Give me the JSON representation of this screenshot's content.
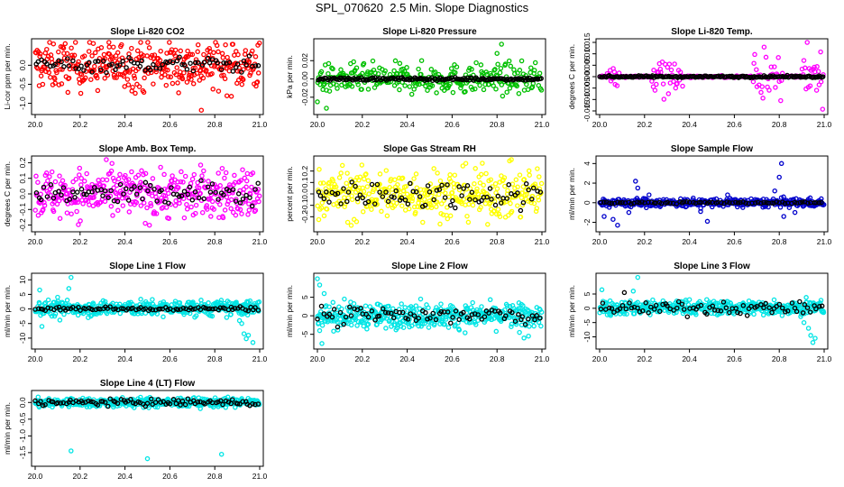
{
  "figure_title": "SPL_070620  2.5 Min. Slope Diagnostics",
  "chart_data": [
    {
      "type": "scatter",
      "title": "Slope Li-820 CO2",
      "ylabel": "Li-cor ppm per min.",
      "xlabel": "",
      "xlim": [
        20.0,
        21.0
      ],
      "ylim": [
        -1.2,
        0.6
      ],
      "xticks": [
        "20.0",
        "20.2",
        "20.4",
        "20.6",
        "20.8",
        "21.0"
      ],
      "yticks": [
        {
          "v": -1.0,
          "t": "-1.0"
        },
        {
          "v": -0.5,
          "t": "-0.5"
        },
        {
          "v": 0.0,
          "t": "0.0"
        }
      ],
      "series": [
        {
          "color": "#ff0000",
          "kind": "noise",
          "spread": 0.32,
          "center": 0.0,
          "n": 360,
          "spikes": [
            [
              20.74,
              -1.18
            ],
            [
              20.81,
              0.52
            ],
            [
              20.33,
              0.48
            ]
          ]
        },
        {
          "color": "#000000",
          "kind": "noise",
          "spread": 0.1,
          "center": 0.02,
          "n": 80
        }
      ]
    },
    {
      "type": "scatter",
      "title": "Slope Li-820 Pressure",
      "ylabel": "kPa per min.",
      "xlabel": "",
      "xlim": [
        20.0,
        21.0
      ],
      "ylim": [
        -0.035,
        0.04
      ],
      "xticks": [
        "20.0",
        "20.2",
        "20.4",
        "20.6",
        "20.8",
        "21.0"
      ],
      "yticks": [
        {
          "v": -0.02,
          "t": "-0.02"
        },
        {
          "v": 0.0,
          "t": "0.00"
        },
        {
          "v": 0.02,
          "t": "0.02"
        }
      ],
      "series": [
        {
          "color": "#00c000",
          "kind": "noise",
          "spread": 0.008,
          "center": 0.0,
          "n": 300,
          "spikes": [
            [
              20.82,
              0.038
            ],
            [
              20.8,
              0.028
            ],
            [
              20.04,
              -0.032
            ],
            [
              20.0,
              -0.025
            ]
          ]
        },
        {
          "color": "#000000",
          "kind": "flat",
          "center": 0.0,
          "spread": 0.0008,
          "n": 160
        }
      ]
    },
    {
      "type": "scatter",
      "title": "Slope Li-820 Temp.",
      "ylabel": "degrees C per min.",
      "xlabel": "",
      "xlim": [
        20.0,
        21.0
      ],
      "ylim": [
        -0.015,
        0.015
      ],
      "xticks": [
        "20.0",
        "20.2",
        "20.4",
        "20.6",
        "20.8",
        "21.0"
      ],
      "yticks": [
        {
          "v": -0.015,
          "t": "-0.015"
        },
        {
          "v": -0.01,
          "t": "-0.010"
        },
        {
          "v": -0.005,
          "t": "-0.005"
        },
        {
          "v": 0.0,
          "t": "0.000"
        },
        {
          "v": 0.005,
          "t": "0.005"
        },
        {
          "v": 0.01,
          "t": "0.010"
        },
        {
          "v": 0.015,
          "t": "0.015"
        }
      ],
      "series": [
        {
          "color": "#ff00ff",
          "kind": "bursts",
          "center": 0.0,
          "n": 220,
          "bursts": [
            [
              20.3,
              0.07,
              0.006
            ],
            [
              20.75,
              0.07,
              0.006
            ],
            [
              20.95,
              0.05,
              0.006
            ],
            [
              20.06,
              0.03,
              0.003
            ]
          ]
        },
        {
          "color": "#000000",
          "kind": "flat",
          "center": 0.0,
          "spread": 0.0002,
          "n": 170
        }
      ]
    },
    {
      "type": "scatter",
      "title": "Slope Amb. Box Temp.",
      "ylabel": "degrees C per min.",
      "xlabel": "",
      "xlim": [
        20.0,
        21.0
      ],
      "ylim": [
        -0.22,
        0.22
      ],
      "xticks": [
        "20.0",
        "20.2",
        "20.4",
        "20.6",
        "20.8",
        "21.0"
      ],
      "yticks": [
        {
          "v": -0.2,
          "t": "-0.2"
        },
        {
          "v": -0.1,
          "t": "-0.1"
        },
        {
          "v": 0.0,
          "t": "0.0"
        },
        {
          "v": 0.1,
          "t": "0.1"
        },
        {
          "v": 0.2,
          "t": "0.2"
        }
      ],
      "series": [
        {
          "color": "#ff00ff",
          "kind": "noise",
          "spread": 0.08,
          "center": 0.0,
          "n": 380
        },
        {
          "color": "#000000",
          "kind": "noise",
          "spread": 0.04,
          "center": 0.0,
          "n": 80
        }
      ]
    },
    {
      "type": "scatter",
      "title": "Slope Gas Stream RH",
      "ylabel": "percent per min.",
      "xlabel": "",
      "xlim": [
        20.0,
        21.0
      ],
      "ylim": [
        -0.3,
        0.3
      ],
      "xticks": [
        "20.0",
        "20.2",
        "20.4",
        "20.6",
        "20.8",
        "21.0"
      ],
      "yticks": [
        {
          "v": -0.2,
          "t": "-0.2"
        },
        {
          "v": -0.1,
          "t": "-0.1"
        },
        {
          "v": 0.0,
          "t": "0.0"
        },
        {
          "v": 0.1,
          "t": "0.1"
        },
        {
          "v": 0.2,
          "t": "0.2"
        }
      ],
      "series": [
        {
          "color": "#ffff00",
          "kind": "noise",
          "spread": 0.11,
          "center": 0.0,
          "n": 380
        },
        {
          "color": "#000000",
          "kind": "noise",
          "spread": 0.06,
          "center": 0.0,
          "n": 80
        }
      ]
    },
    {
      "type": "scatter",
      "title": "Slope Sample Flow",
      "ylabel": "ml/min per min.",
      "xlabel": "",
      "xlim": [
        20.0,
        21.0
      ],
      "ylim": [
        -2.6,
        4.4
      ],
      "xticks": [
        "20.0",
        "20.2",
        "20.4",
        "20.6",
        "20.8",
        "21.0"
      ],
      "yticks": [
        {
          "v": -2,
          "t": "-2"
        },
        {
          "v": 0,
          "t": "0"
        },
        {
          "v": 2,
          "t": "2"
        },
        {
          "v": 4,
          "t": "4"
        }
      ],
      "series": [
        {
          "color": "#0000cc",
          "kind": "noise",
          "spread": 0.22,
          "center": 0.0,
          "n": 380,
          "spikes": [
            [
              20.81,
              4.0
            ],
            [
              20.8,
              2.6
            ],
            [
              20.78,
              1.2
            ],
            [
              20.82,
              -1.4
            ],
            [
              20.16,
              2.2
            ],
            [
              20.13,
              -1.0
            ],
            [
              20.08,
              -2.3
            ],
            [
              20.06,
              -1.7
            ],
            [
              20.02,
              -1.4
            ],
            [
              20.48,
              -1.9
            ],
            [
              20.45,
              -0.9
            ],
            [
              20.17,
              1.5
            ],
            [
              20.22,
              0.8
            ],
            [
              20.57,
              0.8
            ],
            [
              20.87,
              -1.0
            ]
          ]
        },
        {
          "color": "#000000",
          "kind": "noise",
          "spread": 0.05,
          "center": 0.0,
          "n": 80
        }
      ]
    },
    {
      "type": "scatter",
      "title": "Slope Line 1 Flow",
      "ylabel": "ml/min per min.",
      "xlabel": "",
      "xlim": [
        20.0,
        21.0
      ],
      "ylim": [
        -12.5,
        11
      ],
      "xticks": [
        "20.0",
        "20.2",
        "20.4",
        "20.6",
        "20.8",
        "21.0"
      ],
      "yticks": [
        {
          "v": -10,
          "t": "-10"
        },
        {
          "v": -5,
          "t": "-5"
        },
        {
          "v": 0,
          "t": "0"
        },
        {
          "v": 5,
          "t": "5"
        },
        {
          "v": 10,
          "t": "10"
        }
      ],
      "series": [
        {
          "color": "#00e5e5",
          "kind": "noise",
          "spread": 1.3,
          "center": 0.3,
          "n": 420,
          "spikes": [
            [
              20.16,
              10.8
            ],
            [
              20.15,
              7.0
            ],
            [
              20.02,
              6.5
            ],
            [
              20.03,
              -6.0
            ],
            [
              20.1,
              4.0
            ],
            [
              20.11,
              -3.8
            ],
            [
              20.92,
              -5.0
            ],
            [
              20.93,
              -8.5
            ],
            [
              20.94,
              -10.2
            ],
            [
              20.97,
              -11.5
            ],
            [
              20.91,
              -4.0
            ],
            [
              20.95,
              -9.0
            ]
          ]
        },
        {
          "color": "#000000",
          "kind": "flat",
          "center": 0.1,
          "spread": 0.35,
          "n": 90
        }
      ]
    },
    {
      "type": "scatter",
      "title": "Slope Line 2 Flow",
      "ylabel": "ml/min per min.",
      "xlabel": "",
      "xlim": [
        20.0,
        21.0
      ],
      "ylim": [
        -8,
        10.5
      ],
      "xticks": [
        "20.0",
        "20.2",
        "20.4",
        "20.6",
        "20.8",
        "21.0"
      ],
      "yticks": [
        {
          "v": -5,
          "t": "-5"
        },
        {
          "v": 0,
          "t": "0"
        },
        {
          "v": 5,
          "t": "5"
        }
      ],
      "series": [
        {
          "color": "#00e5e5",
          "kind": "noise",
          "spread": 1.6,
          "center": 0.0,
          "n": 420,
          "spikes": [
            [
              20.0,
              10.0
            ],
            [
              20.01,
              8.3
            ],
            [
              20.03,
              6.0
            ],
            [
              20.01,
              -4.0
            ],
            [
              20.02,
              -7.5
            ],
            [
              20.92,
              -6.0
            ],
            [
              20.9,
              -4.5
            ],
            [
              20.94,
              -5.5
            ],
            [
              20.46,
              4.5
            ],
            [
              20.41,
              -3.0
            ],
            [
              20.12,
              4.5
            ]
          ]
        },
        {
          "color": "#000000",
          "kind": "noise",
          "spread": 1.4,
          "center": 0.0,
          "n": 80
        }
      ]
    },
    {
      "type": "scatter",
      "title": "Slope Line 3 Flow",
      "ylabel": "ml/min per min.",
      "xlabel": "",
      "xlim": [
        20.0,
        21.0
      ],
      "ylim": [
        -13,
        11
      ],
      "xticks": [
        "20.0",
        "20.2",
        "20.4",
        "20.6",
        "20.8",
        "21.0"
      ],
      "yticks": [
        {
          "v": -10,
          "t": "-10"
        },
        {
          "v": -5,
          "t": "-5"
        },
        {
          "v": 0,
          "t": "0"
        },
        {
          "v": 5,
          "t": "5"
        }
      ],
      "series": [
        {
          "color": "#00e5e5",
          "kind": "noise",
          "spread": 1.3,
          "center": 0.3,
          "n": 420,
          "spikes": [
            [
              20.17,
              10.8
            ],
            [
              20.15,
              6.0
            ],
            [
              20.01,
              6.5
            ],
            [
              20.93,
              -7.0
            ],
            [
              20.94,
              -9.5
            ],
            [
              20.95,
              -12.0
            ],
            [
              20.91,
              -5.0
            ],
            [
              20.92,
              3.8
            ],
            [
              20.96,
              -10.5
            ]
          ]
        },
        {
          "color": "#000000",
          "kind": "noise",
          "spread": 1.1,
          "center": 0.0,
          "n": 80,
          "spikes": [
            [
              20.11,
              5.5
            ]
          ]
        }
      ]
    },
    {
      "type": "scatter",
      "title": "Slope Line 4 (LT) Flow",
      "ylabel": "ml/min per min.",
      "xlabel": "",
      "xlim": [
        20.0,
        21.0
      ],
      "ylim": [
        -1.8,
        0.25
      ],
      "xticks": [
        "20.0",
        "20.2",
        "20.4",
        "20.6",
        "20.8",
        "21.0"
      ],
      "yticks": [
        {
          "v": -1.5,
          "t": "-1.5"
        },
        {
          "v": -1.0,
          "t": "-1.0"
        },
        {
          "v": -0.5,
          "t": "-0.5"
        },
        {
          "v": 0.0,
          "t": "0.0"
        }
      ],
      "series": [
        {
          "color": "#00e5e5",
          "kind": "noise",
          "spread": 0.07,
          "center": 0.0,
          "n": 400,
          "spikes": [
            [
              20.16,
              -1.45
            ],
            [
              20.5,
              -1.68
            ],
            [
              20.83,
              -1.55
            ]
          ]
        },
        {
          "color": "#000000",
          "kind": "noise",
          "spread": 0.05,
          "center": 0.0,
          "n": 90
        }
      ]
    }
  ]
}
